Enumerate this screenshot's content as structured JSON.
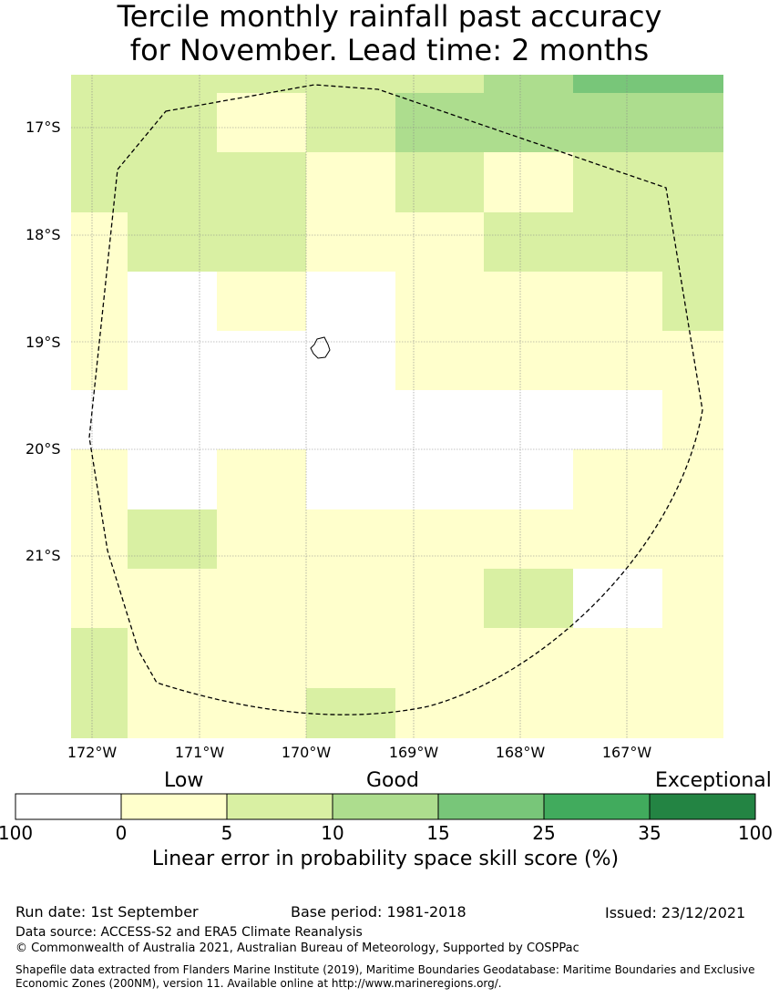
{
  "title_line1": "Tercile monthly rainfall past accuracy",
  "title_line2": "for November. Lead time: 2 months",
  "map": {
    "lat_labels": [
      "17°S",
      "18°S",
      "19°S",
      "20°S",
      "21°S"
    ],
    "lon_labels": [
      "172°W",
      "171°W",
      "170°W",
      "169°W",
      "168°W",
      "167°W"
    ],
    "border_style": "dashed",
    "grid": true
  },
  "legend": {
    "categories": [
      "Low",
      "Good",
      "Exceptional"
    ],
    "ticks": [
      "100",
      "0",
      "5",
      "10",
      "15",
      "25",
      "35",
      "100"
    ],
    "colors": [
      "#ffffff",
      "#ffffcc",
      "#d9f0a3",
      "#addd8e",
      "#78c679",
      "#41ab5d",
      "#238443"
    ],
    "axis_label": "Linear error in probability space skill score (%)"
  },
  "footer": {
    "run_date": "Run date: 1st September",
    "base_period": "Base period: 1981-2018",
    "issued": "Issued: 23/12/2021",
    "data_source": "Data source: ACCESS-S2 and ERA5 Climate Reanalysis",
    "copyright": "© Commonwealth of Australia 2021, Australian Bureau of Meteorology, Supported by COSPPac",
    "shapefile": "Shapefile data extracted from Flanders Marine Institute (2019), Maritime Boundaries Geodatabase: Maritime Boundaries and Exclusive Economic Zones (200NM), version 11. Available online at http://www.marineregions.org/."
  }
}
